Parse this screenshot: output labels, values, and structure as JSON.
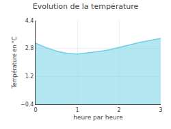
{
  "chart_data": {
    "type": "area",
    "title": "Evolution de la température",
    "xlabel": "heure par heure",
    "ylabel": "Température en °C",
    "x": [
      0,
      0.25,
      0.5,
      0.75,
      1.0,
      1.25,
      1.5,
      1.75,
      2.0,
      2.25,
      2.5,
      2.75,
      3.0
    ],
    "values": [
      3.1,
      2.85,
      2.65,
      2.52,
      2.48,
      2.55,
      2.62,
      2.72,
      2.85,
      3.0,
      3.15,
      3.28,
      3.38
    ],
    "color": "#6ccfe8",
    "xlim": [
      0,
      3
    ],
    "ylim": [
      -0.4,
      4.4
    ],
    "xticks": [
      0,
      1,
      2,
      3
    ],
    "yticks": [
      -0.4,
      1.2,
      2.8,
      4.4
    ],
    "grid": true
  }
}
